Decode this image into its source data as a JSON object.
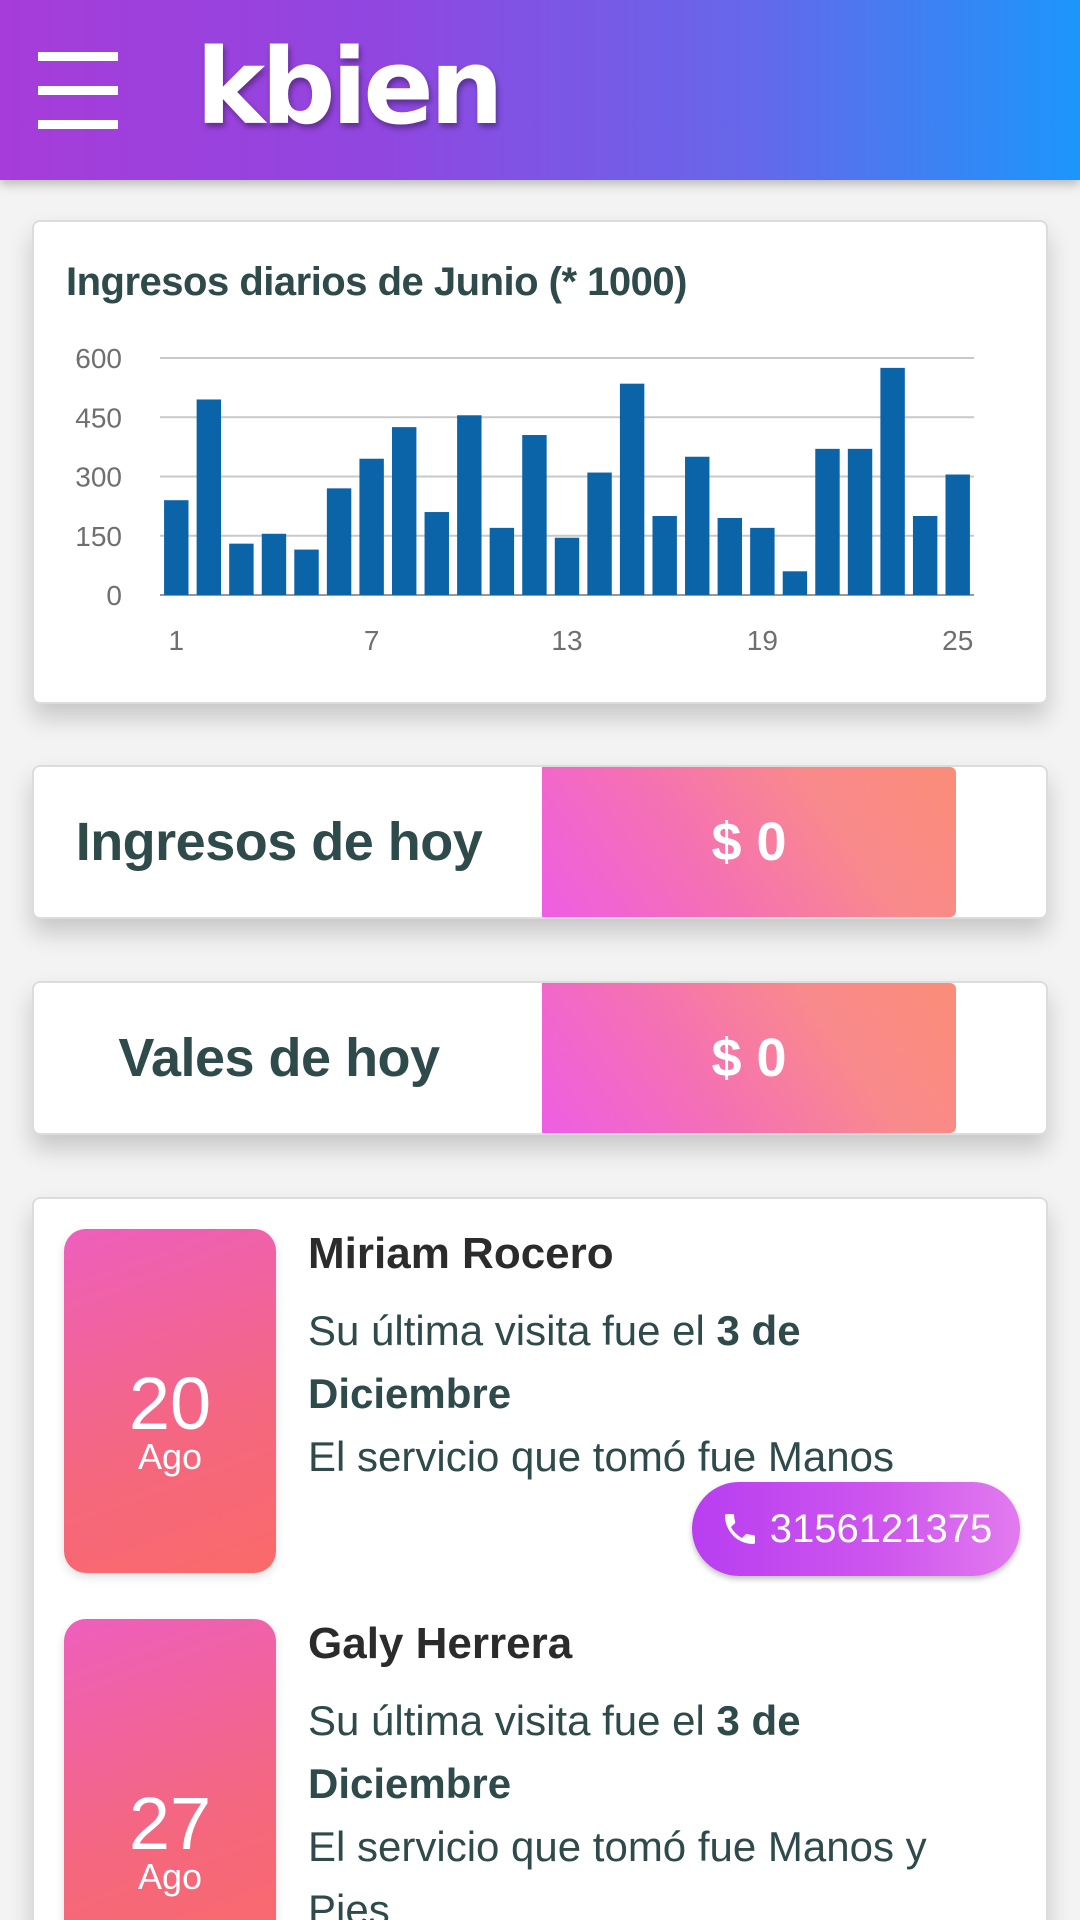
{
  "header": {
    "brand": "kbien",
    "menu_icon": "hamburger-menu-icon",
    "gradient": [
      "#a63cd9",
      "#1c96fb"
    ]
  },
  "chart_data": {
    "type": "bar",
    "title": "Ingresos diarios de Junio (* 1000)",
    "xlabel": "",
    "ylabel": "",
    "x": [
      1,
      2,
      3,
      4,
      5,
      6,
      7,
      8,
      9,
      10,
      11,
      12,
      13,
      14,
      15,
      16,
      17,
      18,
      19,
      20,
      21,
      22,
      23,
      24,
      25
    ],
    "values": [
      240,
      495,
      130,
      155,
      115,
      270,
      345,
      425,
      210,
      455,
      170,
      405,
      145,
      310,
      535,
      200,
      350,
      195,
      170,
      60,
      370,
      370,
      575,
      200,
      305
    ],
    "ylim": [
      0,
      600
    ],
    "yticks": [
      "0",
      "150",
      "300",
      "450",
      "600"
    ],
    "xticks": [
      "1",
      "7",
      "13",
      "19",
      "25"
    ],
    "grid": true,
    "bar_color": "#0b63a8"
  },
  "summary": {
    "income_label": "Ingresos de hoy",
    "income_value": "$ 0",
    "vales_label": "Vales de hoy",
    "vales_value": "$ 0"
  },
  "clients": [
    {
      "day": "20",
      "month": "Ago",
      "name": "Miriam Rocero",
      "visit_prefix": "Su última visita fue el ",
      "visit_date": "3 de Diciembre",
      "service": "El servicio que tomó fue Manos",
      "phone": "3156121375"
    },
    {
      "day": "27",
      "month": "Ago",
      "name": "Galy Herrera",
      "visit_prefix": "Su última visita fue el ",
      "visit_date": "3 de Diciembre",
      "service": "El servicio que tomó fue Manos y Pies"
    }
  ]
}
